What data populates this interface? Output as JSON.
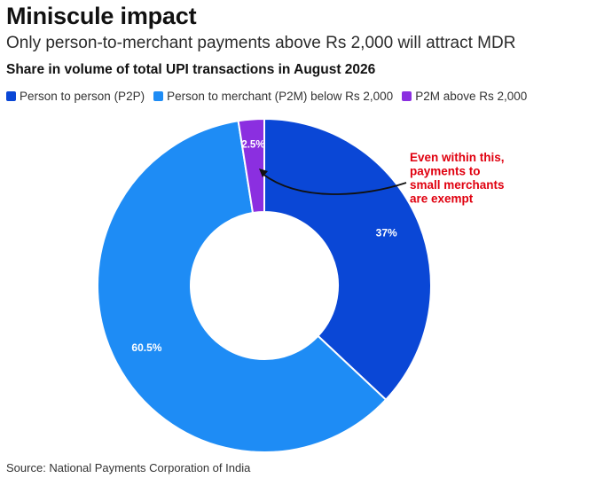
{
  "header": {
    "title": "Miniscule impact",
    "subtitle": "Only person-to-merchant payments above Rs 2,000 will attract MDR"
  },
  "chart_data": {
    "type": "pie",
    "title": "Share in volume of total UPI transactions in August 2026",
    "donut": true,
    "legend_placement": "top-left",
    "series": [
      {
        "name": "Person to person (P2P)",
        "value": 37,
        "label": "37%",
        "color": "#0a47d6"
      },
      {
        "name": "Person to merchant (P2M) below Rs 2,000",
        "value": 60.5,
        "label": "60.5%",
        "color": "#1e8cf5"
      },
      {
        "name": "P2M above Rs 2,000",
        "value": 2.5,
        "label": "2.5%",
        "color": "#8b2fe0"
      }
    ],
    "annotation": {
      "lines": [
        "Even within this,",
        "payments to",
        "small merchants",
        "are exempt"
      ],
      "color": "#e0000f",
      "target": "P2M above Rs 2,000"
    }
  },
  "footer": {
    "source": "Source: National Payments Corporation of India"
  }
}
